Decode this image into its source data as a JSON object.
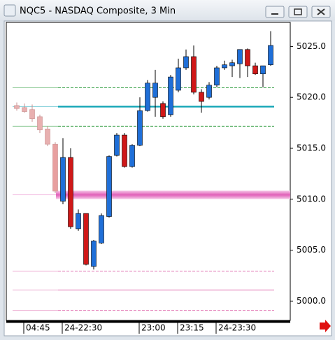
{
  "chart_data": {
    "type": "candlestick",
    "title": "NQC5 - NASDAQ Composite, 3 Min",
    "categories": [
      null,
      "04:45",
      null,
      null,
      null,
      null,
      "24-22:30",
      null,
      null,
      null,
      null,
      null,
      null,
      null,
      null,
      null,
      "23:00",
      null,
      null,
      null,
      null,
      "23:15",
      null,
      null,
      null,
      null,
      "24-23:30",
      null,
      null,
      null,
      null,
      null,
      null,
      null
    ],
    "open": [
      5019.2,
      5019.0,
      5018.8,
      5018.1,
      5016.9,
      5015.4,
      5009.8,
      5014.1,
      5007.1,
      5008.6,
      5003.4,
      5005.7,
      5008.3,
      5014.3,
      5016.3,
      5013.2,
      5015.3,
      5018.7,
      5020.0,
      5019.4,
      5018.3,
      5020.7,
      5022.9,
      5024.0,
      5020.5,
      5020.0,
      5021.2,
      5022.9,
      5023.1,
      5023.3,
      5024.7,
      5023.1,
      5022.3,
      5023.2
    ],
    "high": [
      5019.5,
      5019.4,
      5019.3,
      5018.3,
      5017.2,
      5015.6,
      5016.0,
      5015.0,
      5009.0,
      5008.6,
      5006.0,
      5008.6,
      5014.3,
      5016.5,
      5016.5,
      5015.4,
      5020.0,
      5021.7,
      5022.7,
      5019.6,
      5022.2,
      5023.8,
      5024.7,
      5025.1,
      5020.8,
      5021.5,
      5023.1,
      5023.6,
      5023.7,
      5024.7,
      5024.8,
      5023.4,
      5023.1,
      5026.5
    ],
    "low": [
      5018.7,
      5018.5,
      5017.6,
      5016.5,
      5015.2,
      5010.6,
      5009.5,
      5007.1,
      5006.9,
      5003.5,
      5003.1,
      5005.6,
      5008.2,
      5014.2,
      5013.1,
      5013.1,
      5015.2,
      5018.6,
      5018.1,
      5017.9,
      5018.1,
      5020.5,
      5022.7,
      5020.3,
      5018.5,
      5019.8,
      5021.0,
      5022.7,
      5022.0,
      5021.9,
      5022.0,
      5022.2,
      5021.0,
      5023.1
    ],
    "close": [
      5018.9,
      5018.6,
      5017.9,
      5016.8,
      5015.4,
      5010.8,
      5014.1,
      5007.3,
      5008.6,
      5003.6,
      5005.9,
      5008.4,
      5014.2,
      5016.3,
      5013.2,
      5015.3,
      5018.7,
      5021.4,
      5021.4,
      5018.1,
      5022.0,
      5022.9,
      5024.0,
      5020.5,
      5019.6,
      5021.2,
      5022.9,
      5023.2,
      5023.4,
      5024.7,
      5023.1,
      5022.3,
      5023.1,
      5025.1
    ],
    "candle_colors": [
      "#e8b0b0",
      "#e8b0b0",
      "#e8b0b0",
      "#e8b0b0",
      "#e8b0b0",
      "#e8a0a0",
      "#1f6fd8",
      "#d01818",
      "#1f6fd8",
      "#d01818",
      "#1f6fd8",
      "#1f6fd8",
      "#1f6fd8",
      "#1f6fd8",
      "#d01818",
      "#1f6fd8",
      "#1f6fd8",
      "#1f6fd8",
      "#1f6fd8",
      "#d01818",
      "#1f6fd8",
      "#1f6fd8",
      "#1f6fd8",
      "#d01818",
      "#d01818",
      "#1f6fd8",
      "#1f6fd8",
      "#1f6fd8",
      "#1f6fd8",
      "#1f6fd8",
      "#d01818",
      "#d01818",
      "#1f6fd8",
      "#1f6fd8"
    ],
    "ylim": [
      4998.1,
      5027.5
    ],
    "yticks": [
      {
        "value": 5000,
        "label": "5000.0"
      },
      {
        "value": 5005,
        "label": "5005.0"
      },
      {
        "value": 5010,
        "label": "5010.0"
      },
      {
        "value": 5015,
        "label": "5015.0"
      },
      {
        "value": 5020,
        "label": "5020.0"
      },
      {
        "value": 5025,
        "label": "5025.0"
      }
    ],
    "levels": [
      {
        "value": 5020.94,
        "color": "#2a9a3a",
        "style": "dashed"
      },
      {
        "value": 5019.09,
        "color": "#1aa8b8",
        "style": "solid"
      },
      {
        "value": 5017.17,
        "color": "#2a9a3a",
        "style": "dashed"
      },
      {
        "value": 5010.43,
        "color": "#e060b8",
        "style": "band"
      },
      {
        "value": 5002.94,
        "color": "#e070b0",
        "style": "dashed"
      },
      {
        "value": 5001.08,
        "color": "#e070b0",
        "style": "solid"
      },
      {
        "value": 4999.09,
        "color": "#e070b0",
        "style": "dashed"
      }
    ]
  }
}
